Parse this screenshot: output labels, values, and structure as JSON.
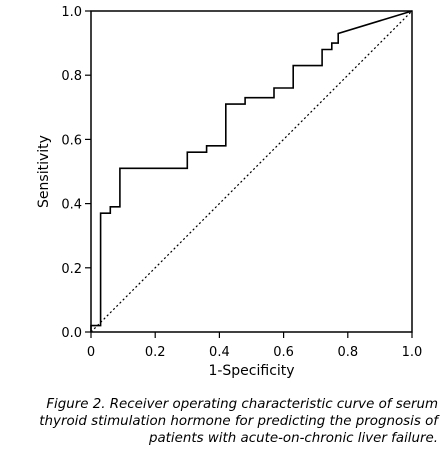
{
  "chart_data": {
    "type": "line",
    "xlabel": "1-Specificity",
    "ylabel": "Sensitivity",
    "xlim": [
      0,
      1
    ],
    "ylim": [
      0,
      1
    ],
    "x_ticks": [
      "0",
      "0.2",
      "0.4",
      "0.6",
      "0.8",
      "1.0"
    ],
    "y_ticks": [
      "0.0",
      "0.2",
      "0.4",
      "0.6",
      "0.8",
      "1.0"
    ],
    "grid": false,
    "series": [
      {
        "style": "solid step line",
        "points": [
          [
            0.0,
            0.0
          ],
          [
            0.0,
            0.02
          ],
          [
            0.03,
            0.02
          ],
          [
            0.03,
            0.37
          ],
          [
            0.06,
            0.37
          ],
          [
            0.06,
            0.39
          ],
          [
            0.09,
            0.39
          ],
          [
            0.09,
            0.51
          ],
          [
            0.3,
            0.51
          ],
          [
            0.3,
            0.56
          ],
          [
            0.36,
            0.56
          ],
          [
            0.36,
            0.58
          ],
          [
            0.42,
            0.58
          ],
          [
            0.42,
            0.71
          ],
          [
            0.48,
            0.71
          ],
          [
            0.48,
            0.73
          ],
          [
            0.57,
            0.73
          ],
          [
            0.57,
            0.76
          ],
          [
            0.63,
            0.76
          ],
          [
            0.63,
            0.83
          ],
          [
            0.72,
            0.83
          ],
          [
            0.72,
            0.88
          ],
          [
            0.75,
            0.88
          ],
          [
            0.75,
            0.9
          ],
          [
            0.77,
            0.9
          ],
          [
            0.77,
            0.93
          ],
          [
            1.0,
            1.0
          ]
        ]
      },
      {
        "style": "dotted diagonal reference",
        "points": [
          [
            0,
            0
          ],
          [
            1,
            1
          ]
        ]
      }
    ]
  },
  "caption": {
    "line1": "Figure 2. Receiver operating characteristic curve of serum",
    "line2": "thyroid stimulation hormone for predicting the prognosis of",
    "line3": "patients with acute-on-chronic liver failure."
  }
}
